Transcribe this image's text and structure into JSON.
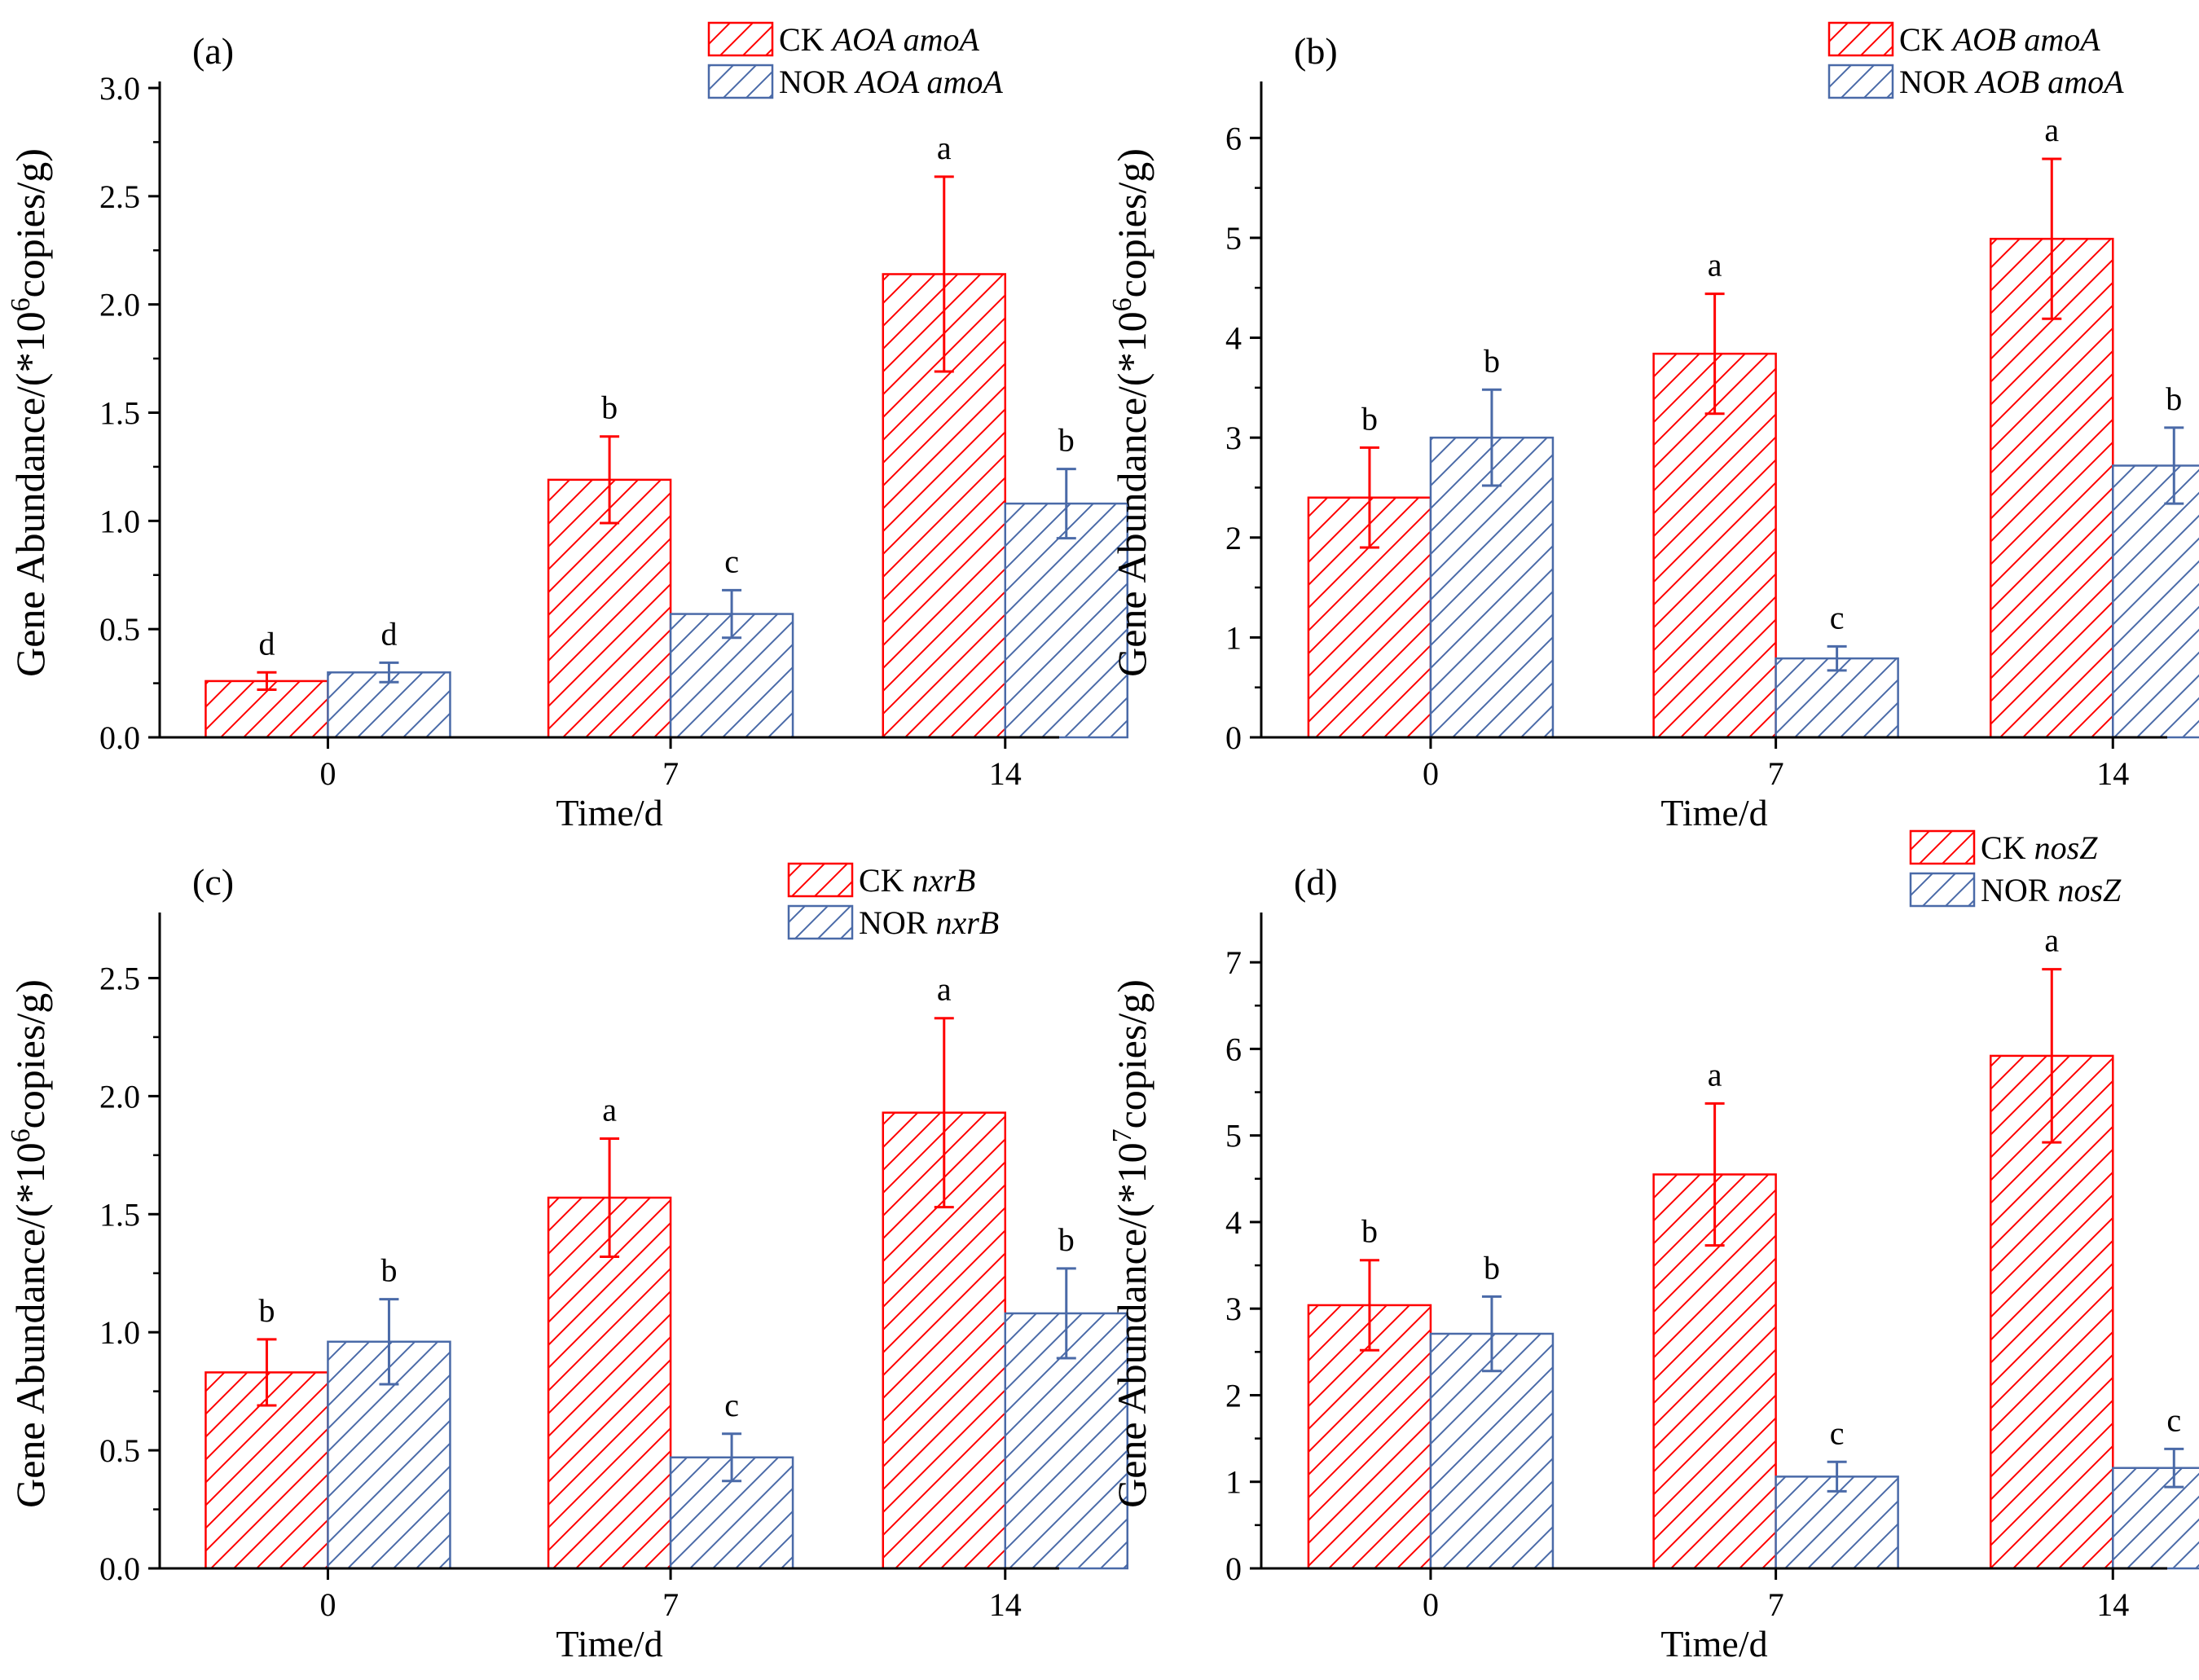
{
  "colors": {
    "ck": "#ff0000",
    "nor": "#4a6aa8",
    "axis": "#000000"
  },
  "chart_data": [
    {
      "panel_label": "(a)",
      "type": "bar",
      "categories": [
        "0",
        "7",
        "14"
      ],
      "xlabel": "Time/d",
      "ylabel_parts": {
        "main": "Gene Abundance/(*10",
        "exp": "6",
        "tail": "copies/g)"
      },
      "ylim": [
        0,
        3.0
      ],
      "yticks": [
        0.0,
        0.5,
        1.0,
        1.5,
        2.0,
        2.5,
        3.0
      ],
      "ytick_labels": [
        "0.0",
        "0.5",
        "1.0",
        "1.5",
        "2.0",
        "2.5",
        "3.0"
      ],
      "series": [
        {
          "name": "CK",
          "legend_prefix": "CK ",
          "legend_gene": "AOA amoA",
          "color_key": "ck",
          "values": [
            0.26,
            1.19,
            2.14
          ],
          "errors": [
            0.04,
            0.2,
            0.45
          ],
          "letters": [
            "d",
            "b",
            "a"
          ]
        },
        {
          "name": "NOR",
          "legend_prefix": "NOR ",
          "legend_gene": "AOA amoA",
          "color_key": "nor",
          "values": [
            0.3,
            0.57,
            1.08
          ],
          "errors": [
            0.045,
            0.11,
            0.16
          ],
          "letters": [
            "d",
            "c",
            "b"
          ]
        }
      ]
    },
    {
      "panel_label": "(b)",
      "type": "bar",
      "categories": [
        "0",
        "7",
        "14"
      ],
      "xlabel": "Time/d",
      "ylabel_parts": {
        "main": "Gene Abundance/(*10",
        "exp": "6",
        "tail": "copies/g)"
      },
      "ylim": [
        0,
        6.5
      ],
      "yticks": [
        0,
        1,
        2,
        3,
        4,
        5,
        6
      ],
      "ytick_labels": [
        "0",
        "1",
        "2",
        "3",
        "4",
        "5",
        "6"
      ],
      "series": [
        {
          "name": "CK",
          "legend_prefix": "CK ",
          "legend_gene": "AOB amoA",
          "color_key": "ck",
          "values": [
            2.4,
            3.84,
            4.99
          ],
          "errors": [
            0.5,
            0.6,
            0.8
          ],
          "letters": [
            "b",
            "a",
            "a"
          ]
        },
        {
          "name": "NOR",
          "legend_prefix": "NOR ",
          "legend_gene": "AOB amoA",
          "color_key": "nor",
          "values": [
            3.0,
            0.79,
            2.72
          ],
          "errors": [
            0.48,
            0.12,
            0.38
          ],
          "letters": [
            "b",
            "c",
            "b"
          ]
        }
      ]
    },
    {
      "panel_label": "(c)",
      "type": "bar",
      "categories": [
        "0",
        "7",
        "14"
      ],
      "xlabel": "Time/d",
      "ylabel_parts": {
        "main": "Gene Abundance/(*10",
        "exp": "6",
        "tail": "copies/g)"
      },
      "ylim": [
        0,
        2.75
      ],
      "yticks": [
        0.0,
        0.5,
        1.0,
        1.5,
        2.0,
        2.5
      ],
      "ytick_labels": [
        "0.0",
        "0.5",
        "1.0",
        "1.5",
        "2.0",
        "2.5"
      ],
      "series": [
        {
          "name": "CK",
          "legend_prefix": "CK ",
          "legend_gene": "nxrB",
          "color_key": "ck",
          "values": [
            0.83,
            1.57,
            1.93
          ],
          "errors": [
            0.14,
            0.25,
            0.4
          ],
          "letters": [
            "b",
            "a",
            "a"
          ]
        },
        {
          "name": "NOR",
          "legend_prefix": "NOR ",
          "legend_gene": "nxrB",
          "color_key": "nor",
          "values": [
            0.96,
            0.47,
            1.08
          ],
          "errors": [
            0.18,
            0.1,
            0.19
          ],
          "letters": [
            "b",
            "c",
            "b"
          ]
        }
      ]
    },
    {
      "panel_label": "(d)",
      "type": "bar",
      "categories": [
        "0",
        "7",
        "14"
      ],
      "xlabel": "Time/d",
      "ylabel_parts": {
        "main": "Gene Abundance/(*10",
        "exp": "7",
        "tail": "copies/g)"
      },
      "ylim": [
        0,
        7.5
      ],
      "yticks": [
        0,
        1,
        2,
        3,
        4,
        5,
        6,
        7
      ],
      "ytick_labels": [
        "0",
        "1",
        "2",
        "3",
        "4",
        "5",
        "6",
        "7"
      ],
      "series": [
        {
          "name": "CK",
          "legend_prefix": "CK ",
          "legend_gene": "nosZ",
          "color_key": "ck",
          "values": [
            3.04,
            4.55,
            5.92
          ],
          "errors": [
            0.52,
            0.82,
            1.0
          ],
          "letters": [
            "b",
            "a",
            "a"
          ]
        },
        {
          "name": "NOR",
          "legend_prefix": "NOR ",
          "legend_gene": "nosZ",
          "color_key": "nor",
          "values": [
            2.71,
            1.06,
            1.16
          ],
          "errors": [
            0.43,
            0.17,
            0.22
          ],
          "letters": [
            "b",
            "c",
            "c"
          ]
        }
      ]
    }
  ]
}
